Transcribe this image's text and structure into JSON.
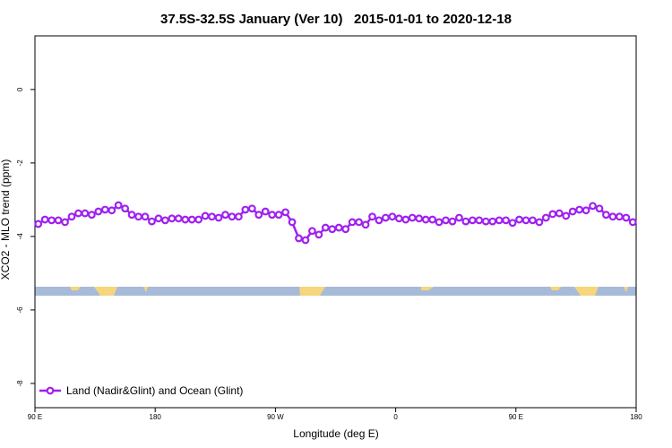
{
  "chart_data": {
    "type": "line",
    "title": "37.5S-32.5S January (Ver 10)   2015-01-01 to 2020-12-18",
    "xlabel": "Longitude (deg E)",
    "ylabel": "XCO2 - MLO trend (ppm)",
    "x": [
      92.5,
      97.5,
      102.5,
      107.5,
      112.5,
      117.5,
      122.5,
      127.5,
      132.5,
      137.5,
      142.5,
      147.5,
      152.5,
      157.5,
      162.5,
      167.5,
      172.5,
      177.5,
      182.5,
      187.5,
      192.5,
      197.5,
      202.5,
      207.5,
      212.5,
      217.5,
      222.5,
      227.5,
      232.5,
      237.5,
      242.5,
      247.5,
      252.5,
      257.5,
      262.5,
      267.5,
      272.5,
      277.5,
      282.5,
      287.5,
      292.5,
      297.5,
      302.5,
      307.5,
      312.5,
      317.5,
      322.5,
      327.5,
      332.5,
      337.5,
      342.5,
      347.5,
      352.5,
      357.5,
      362.5,
      367.5,
      372.5,
      377.5,
      382.5,
      387.5,
      392.5,
      397.5,
      402.5,
      407.5,
      412.5,
      417.5,
      422.5,
      427.5,
      432.5,
      437.5,
      442.5,
      447.5,
      452.5,
      457.5,
      462.5,
      467.5,
      472.5,
      477.5,
      482.5,
      487.5,
      492.5,
      497.5,
      502.5,
      507.5,
      512.5,
      517.5,
      522.5,
      527.5,
      532.5,
      537.5
    ],
    "series": [
      {
        "name": "Land (Nadir&Glint) and Ocean (Glint)",
        "color": "#a020f0",
        "values": [
          -3.66,
          -3.54,
          -3.56,
          -3.56,
          -3.61,
          -3.46,
          -3.37,
          -3.37,
          -3.41,
          -3.32,
          -3.27,
          -3.29,
          -3.15,
          -3.24,
          -3.41,
          -3.46,
          -3.46,
          -3.59,
          -3.51,
          -3.56,
          -3.51,
          -3.51,
          -3.54,
          -3.54,
          -3.54,
          -3.44,
          -3.46,
          -3.49,
          -3.41,
          -3.46,
          -3.46,
          -3.27,
          -3.24,
          -3.41,
          -3.32,
          -3.41,
          -3.41,
          -3.34,
          -3.61,
          -4.05,
          -4.1,
          -3.85,
          -3.95,
          -3.76,
          -3.8,
          -3.76,
          -3.8,
          -3.61,
          -3.61,
          -3.68,
          -3.46,
          -3.56,
          -3.49,
          -3.46,
          -3.51,
          -3.54,
          -3.49,
          -3.51,
          -3.54,
          -3.54,
          -3.61,
          -3.56,
          -3.59,
          -3.49,
          -3.59,
          -3.56,
          -3.56,
          -3.59,
          -3.59,
          -3.56,
          -3.56,
          -3.63,
          -3.54,
          -3.56,
          -3.56,
          -3.61,
          -3.49,
          -3.39,
          -3.37,
          -3.44,
          -3.32,
          -3.27,
          -3.29,
          -3.17,
          -3.24,
          -3.41,
          -3.46,
          -3.46,
          -3.49,
          -3.61
        ]
      }
    ],
    "xlim": [
      90,
      540
    ],
    "ylim": [
      -8.66,
      1.46
    ],
    "xticks": [
      {
        "value": 90,
        "label": "90 E"
      },
      {
        "value": 180,
        "label": "180"
      },
      {
        "value": 270,
        "label": "90 W"
      },
      {
        "value": 360,
        "label": "0"
      },
      {
        "value": 450,
        "label": "90 E"
      },
      {
        "value": 540,
        "label": "180"
      }
    ],
    "yticks": [
      0,
      -2,
      -4,
      -6,
      -8
    ],
    "legend": "bottom left"
  }
}
